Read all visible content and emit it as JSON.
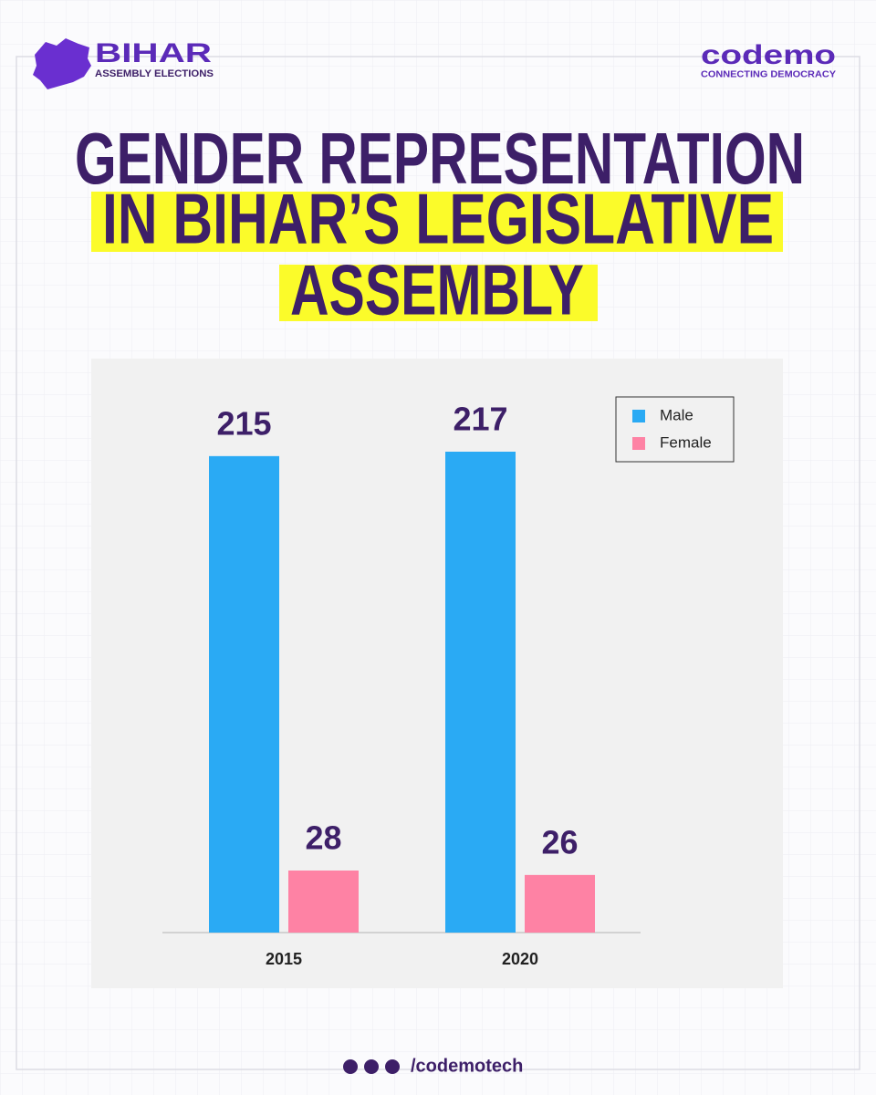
{
  "header": {
    "brand": "BIHAR",
    "brand_subtitle": "ASSEMBLY ELECTIONS",
    "logo": "codemo",
    "logo_tagline": "CONNECTING DEMOCRACY"
  },
  "chart_data": {
    "type": "bar",
    "title": [
      "GENDER REPRESENTATION",
      "IN BIHAR’S LEGISLATIVE",
      "ASSEMBLY"
    ],
    "categories": [
      "2015",
      "2020"
    ],
    "series": [
      {
        "name": "Male",
        "color": "#2aaaf4",
        "values": [
          215,
          217
        ]
      },
      {
        "name": "Female",
        "color": "#fe82a4",
        "values": [
          28,
          26
        ]
      }
    ],
    "legend": "top-right"
  },
  "footer": {
    "handle": "/codemotech"
  }
}
